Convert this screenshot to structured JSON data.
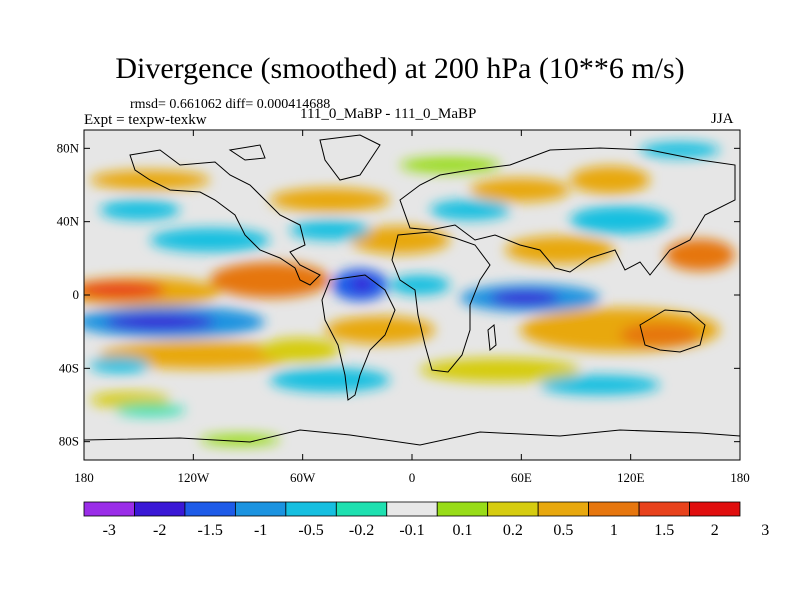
{
  "title": "Divergence (smoothed) at 200 hPa (10**6 m/s)",
  "stats": "rmsd= 0.661062 diff= 0.000414688",
  "expt": "Expt = texpw-texkw",
  "case": "111_0_MaBP - 111_0_MaBP",
  "season": "JJA",
  "map": {
    "lon_range": [
      -180,
      180
    ],
    "lat_range": [
      -90,
      90
    ],
    "y_ticks": [
      {
        "value": 80,
        "label": "80N"
      },
      {
        "value": 40,
        "label": "40N"
      },
      {
        "value": 0,
        "label": "0"
      },
      {
        "value": -40,
        "label": "40S"
      },
      {
        "value": -80,
        "label": "80S"
      }
    ],
    "x_ticks": [
      {
        "value": -180,
        "label": "180"
      },
      {
        "value": -120,
        "label": "120W"
      },
      {
        "value": -60,
        "label": "60W"
      },
      {
        "value": 0,
        "label": "0"
      },
      {
        "value": 60,
        "label": "60E"
      },
      {
        "value": 120,
        "label": "120E"
      },
      {
        "value": 180,
        "label": "180"
      }
    ]
  },
  "colorbar": {
    "colors": [
      "#9a2de8",
      "#3a18d6",
      "#1e5be8",
      "#1b93e0",
      "#16bfe0",
      "#1ee0b0",
      "#e8e8e8",
      "#98dc18",
      "#d6cc10",
      "#e8a80e",
      "#e6760e",
      "#e8421c",
      "#e00e0e"
    ],
    "labels": [
      "-3",
      "-2",
      "-1.5",
      "-1",
      "-0.5",
      "-0.2",
      "-0.1",
      "0.1",
      "0.2",
      "0.5",
      "1",
      "1.5",
      "2",
      "3"
    ]
  }
}
